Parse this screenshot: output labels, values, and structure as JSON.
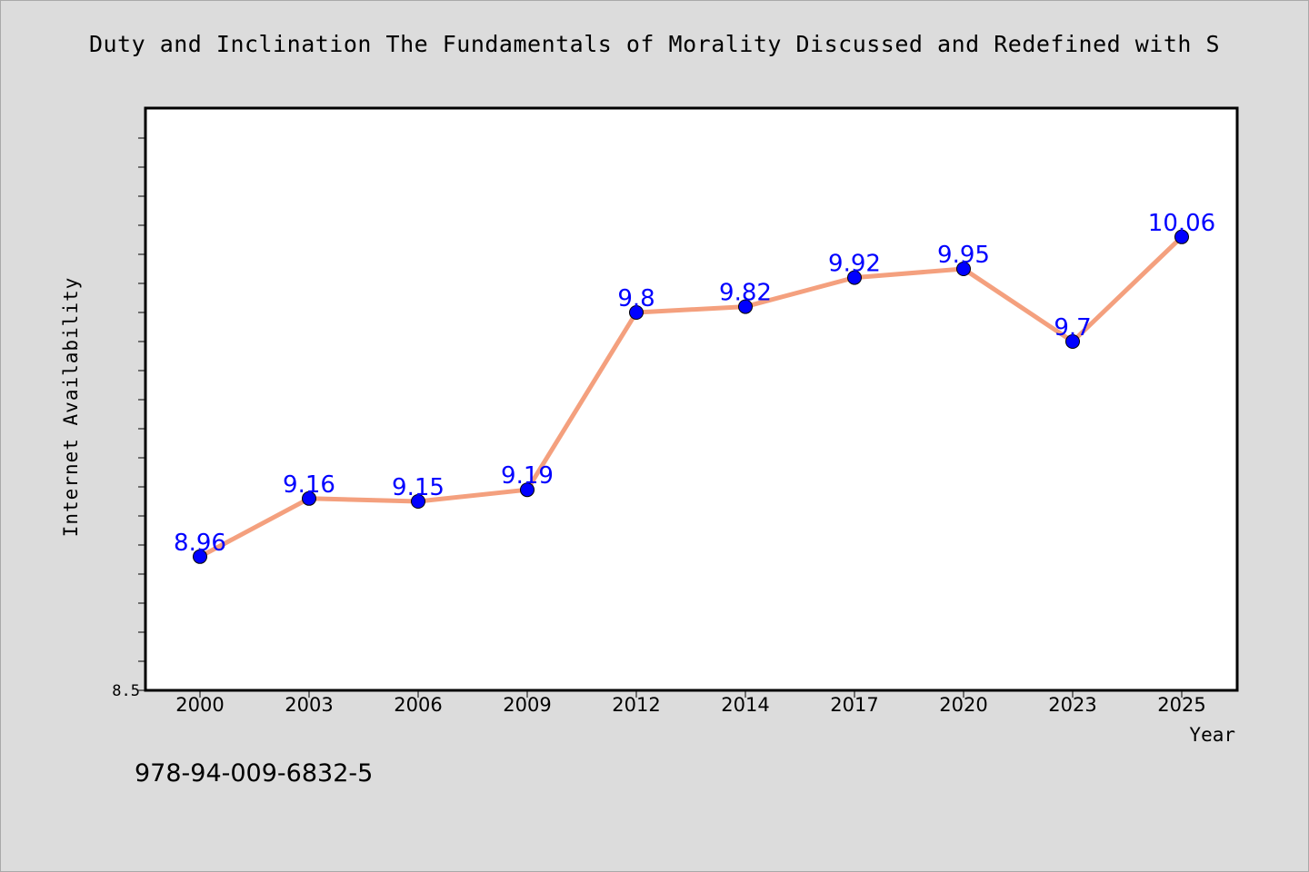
{
  "chart_data": {
    "type": "line",
    "title": "Duty and Inclination The Fundamentals of Morality Discussed and Redefined with S",
    "xlabel": "Year",
    "ylabel": "Internet Availability",
    "categories": [
      "2000",
      "2003",
      "2006",
      "2009",
      "2012",
      "2014",
      "2017",
      "2020",
      "2023",
      "2025"
    ],
    "values": [
      8.96,
      9.16,
      9.15,
      9.19,
      9.8,
      9.82,
      9.92,
      9.95,
      9.7,
      10.06
    ],
    "data_labels": [
      "8.96",
      "9.16",
      "9.15",
      "9.19",
      "9.8",
      "9.82",
      "9.92",
      "9.95",
      "9.7",
      "10.06"
    ],
    "ylim": [
      8.5,
      10.5
    ],
    "y_tick_labels": [
      "8.5"
    ],
    "grid": false,
    "colors": {
      "line": "#f4a07e",
      "marker": "#0000ff",
      "label": "#0000ff"
    }
  },
  "footer": {
    "isbn": "978-94-009-6832-5"
  }
}
